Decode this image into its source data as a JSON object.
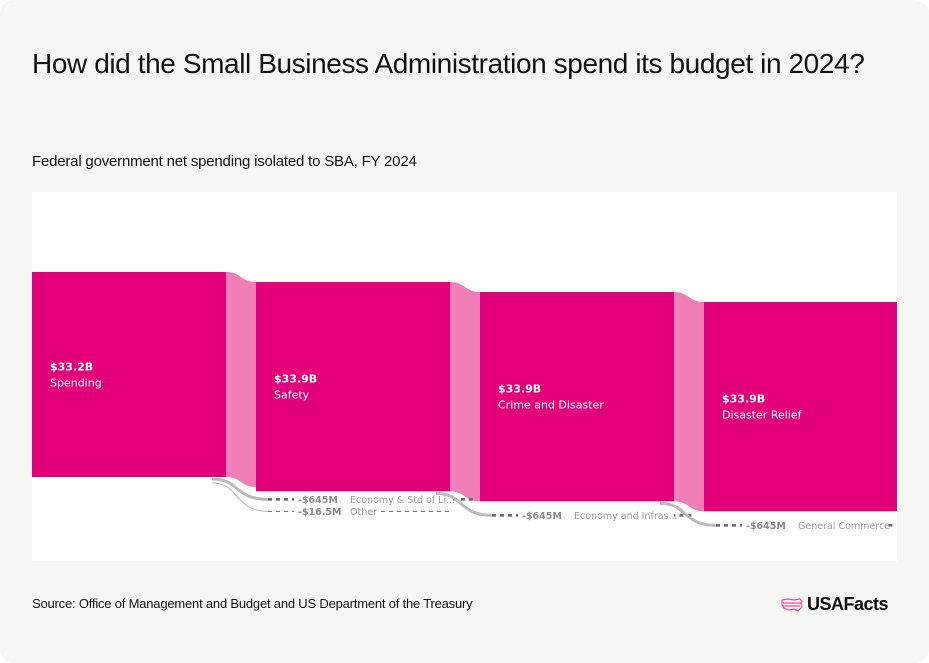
{
  "header": {
    "title": "How did the Small Business Administration spend its budget in 2024?",
    "subtitle": "Federal government net spending isolated to SBA, FY 2024"
  },
  "footer": {
    "source": "Source: Office of Management and Budget and US Department of the Treasury",
    "logo_text": "USAFacts"
  },
  "colors": {
    "node": "#e2007a",
    "link": "#f07fb8",
    "negative_flow": "#bbbbbb",
    "background": "#f6f6f2"
  },
  "chart_data": {
    "type": "sankey",
    "title": "How did the Small Business Administration spend its budget in 2024?",
    "subtitle": "Federal government net spending isolated to SBA, FY 2024",
    "unit": "USD",
    "nodes": [
      {
        "level": 0,
        "name": "Spending",
        "value_label": "$33.2B",
        "value": 33.2
      },
      {
        "level": 1,
        "name": "Safety",
        "value_label": "$33.9B",
        "value": 33.9
      },
      {
        "level": 2,
        "name": "Crime and Disaster",
        "value_label": "$33.9B",
        "value": 33.9
      },
      {
        "level": 3,
        "name": "Disaster Relief",
        "value_label": "$33.9B",
        "value": 33.9
      }
    ],
    "negative_flows": [
      {
        "level": 1,
        "name": "Economy & Std of Li...",
        "value_label": "-$645M",
        "value": -0.645
      },
      {
        "level": 1,
        "name": "Other",
        "value_label": "-$16.5M",
        "value": -0.0165
      },
      {
        "level": 2,
        "name": "Economy and Infras...",
        "value_label": "-$645M",
        "value": -0.645
      },
      {
        "level": 3,
        "name": "General Commerce",
        "value_label": "-$645M",
        "value": -0.645
      }
    ]
  }
}
